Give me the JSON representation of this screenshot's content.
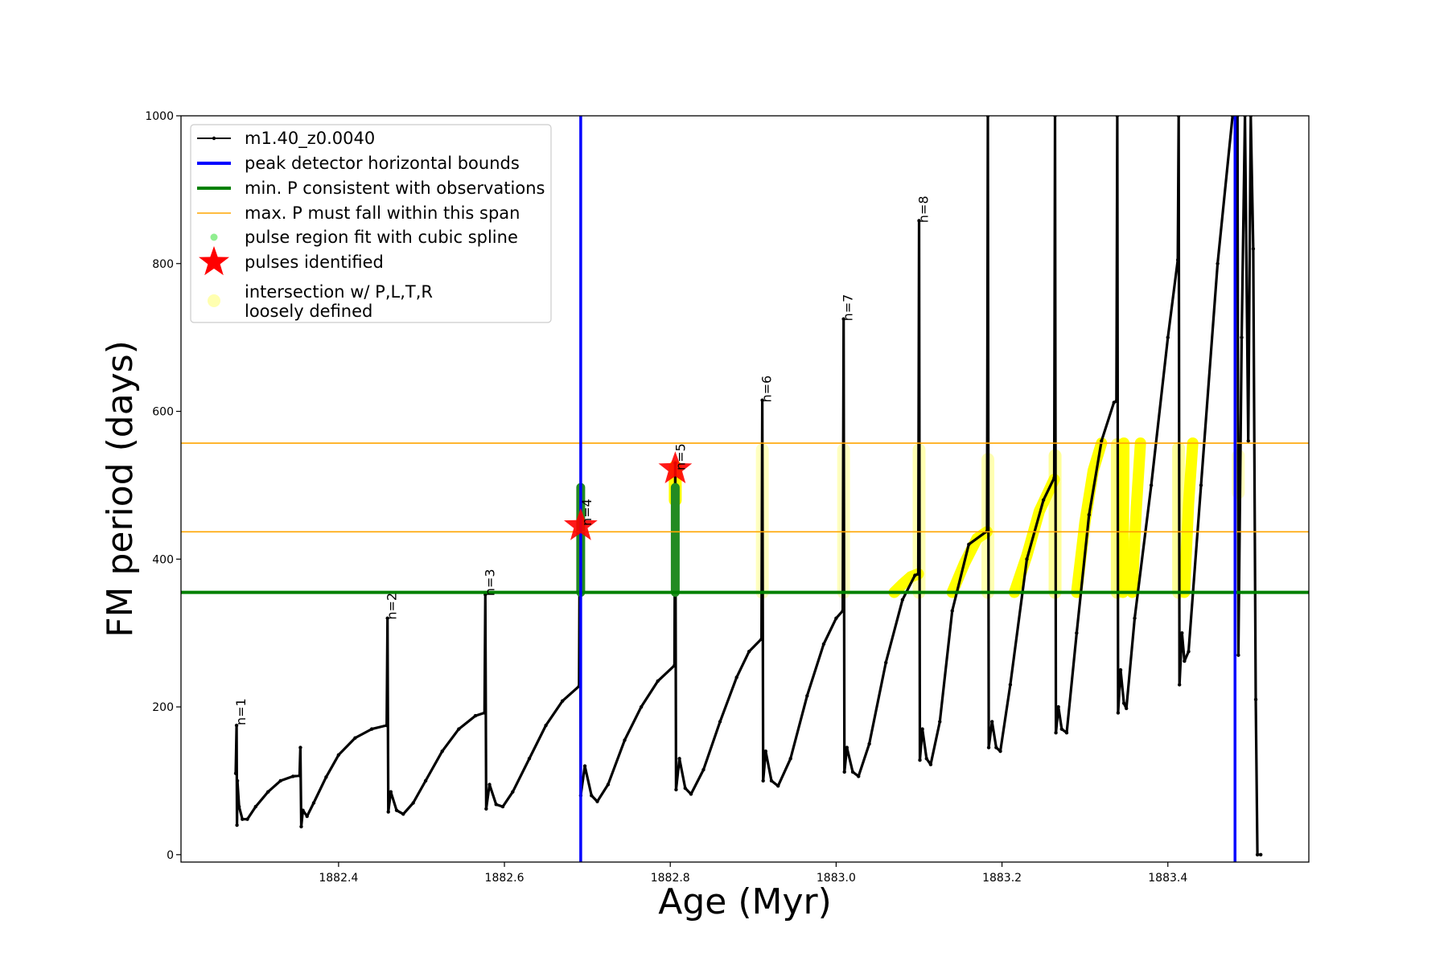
{
  "chart_data": {
    "type": "line",
    "xlabel": "Age (Myr)",
    "ylabel": "FM period (days)",
    "xlim": [
      1882.21,
      1883.57
    ],
    "ylim": [
      -10,
      1000
    ],
    "xticks": [
      "1882.4",
      "1882.6",
      "1882.8",
      "1883.0",
      "1883.2",
      "1883.4"
    ],
    "yticks": [
      "0",
      "200",
      "400",
      "600",
      "800",
      "1000"
    ],
    "grid": false,
    "legend_position": "top-left",
    "legend": [
      {
        "label": "m1.40_z0.0040",
        "kind": "line-dot",
        "color": "#000000"
      },
      {
        "label": "peak detector horizontal bounds",
        "kind": "line",
        "color": "#0000ff"
      },
      {
        "label": "min. P consistent with observations",
        "kind": "line",
        "color": "#008000"
      },
      {
        "label": "max. P must fall within this span",
        "kind": "thin-line",
        "color": "#ffa500"
      },
      {
        "label": "pulse region fit with cubic spline",
        "kind": "dot",
        "color": "#90ee90"
      },
      {
        "label": "pulses identified",
        "kind": "star",
        "color": "#ff0000"
      },
      {
        "label": "intersection w/ P,L,T,R\nloosely defined",
        "kind": "pale-dot",
        "color": "#ffffb0"
      }
    ],
    "vlines": [
      {
        "x": 1882.692,
        "color": "#0000ff"
      },
      {
        "x": 1883.481,
        "color": "#0000ff"
      }
    ],
    "hlines": [
      {
        "y": 355,
        "color": "#008000",
        "width": 4
      },
      {
        "y": 437,
        "color": "#ffa500",
        "width": 1.6
      },
      {
        "y": 557,
        "color": "#ffa500",
        "width": 1.6
      }
    ],
    "series": [
      {
        "name": "m1.40_z0.0040",
        "color": "#000000",
        "points": [
          [
            1882.276,
            110
          ],
          [
            1882.277,
            175
          ],
          [
            1882.2775,
            40
          ],
          [
            1882.278,
            100
          ],
          [
            1882.28,
            65
          ],
          [
            1882.284,
            48
          ],
          [
            1882.29,
            48
          ],
          [
            1882.3,
            65
          ],
          [
            1882.315,
            85
          ],
          [
            1882.33,
            100
          ],
          [
            1882.345,
            106
          ],
          [
            1882.353,
            107
          ],
          [
            1882.354,
            145
          ],
          [
            1882.355,
            38
          ],
          [
            1882.357,
            60
          ],
          [
            1882.362,
            52
          ],
          [
            1882.37,
            70
          ],
          [
            1882.385,
            105
          ],
          [
            1882.4,
            135
          ],
          [
            1882.42,
            158
          ],
          [
            1882.44,
            170
          ],
          [
            1882.458,
            175
          ],
          [
            1882.459,
            320
          ],
          [
            1882.46,
            58
          ],
          [
            1882.463,
            85
          ],
          [
            1882.47,
            60
          ],
          [
            1882.478,
            55
          ],
          [
            1882.49,
            70
          ],
          [
            1882.505,
            100
          ],
          [
            1882.525,
            140
          ],
          [
            1882.545,
            170
          ],
          [
            1882.565,
            188
          ],
          [
            1882.576,
            192
          ],
          [
            1882.577,
            352
          ],
          [
            1882.578,
            62
          ],
          [
            1882.582,
            95
          ],
          [
            1882.59,
            68
          ],
          [
            1882.598,
            65
          ],
          [
            1882.61,
            85
          ],
          [
            1882.63,
            130
          ],
          [
            1882.65,
            175
          ],
          [
            1882.67,
            208
          ],
          [
            1882.69,
            228
          ],
          [
            1882.691,
            480
          ],
          [
            1882.692,
            80
          ],
          [
            1882.697,
            120
          ],
          [
            1882.705,
            80
          ],
          [
            1882.712,
            72
          ],
          [
            1882.725,
            95
          ],
          [
            1882.745,
            155
          ],
          [
            1882.765,
            200
          ],
          [
            1882.785,
            235
          ],
          [
            1882.805,
            256
          ],
          [
            1882.806,
            530
          ],
          [
            1882.807,
            88
          ],
          [
            1882.811,
            130
          ],
          [
            1882.818,
            90
          ],
          [
            1882.825,
            82
          ],
          [
            1882.84,
            115
          ],
          [
            1882.86,
            180
          ],
          [
            1882.88,
            240
          ],
          [
            1882.895,
            275
          ],
          [
            1882.91,
            292
          ],
          [
            1882.911,
            615
          ],
          [
            1882.912,
            100
          ],
          [
            1882.915,
            140
          ],
          [
            1882.922,
            100
          ],
          [
            1882.93,
            93
          ],
          [
            1882.945,
            130
          ],
          [
            1882.965,
            215
          ],
          [
            1882.985,
            285
          ],
          [
            1883.0,
            320
          ],
          [
            1883.008,
            330
          ],
          [
            1883.009,
            725
          ],
          [
            1883.01,
            112
          ],
          [
            1883.013,
            145
          ],
          [
            1883.02,
            112
          ],
          [
            1883.027,
            106
          ],
          [
            1883.04,
            150
          ],
          [
            1883.06,
            260
          ],
          [
            1883.08,
            345
          ],
          [
            1883.095,
            378
          ],
          [
            1883.099,
            380
          ],
          [
            1883.1,
            858
          ],
          [
            1883.101,
            128
          ],
          [
            1883.104,
            170
          ],
          [
            1883.109,
            130
          ],
          [
            1883.114,
            122
          ],
          [
            1883.125,
            180
          ],
          [
            1883.14,
            330
          ],
          [
            1883.16,
            420
          ],
          [
            1883.182,
            438
          ],
          [
            1883.183,
            1000
          ],
          [
            1883.184,
            145
          ],
          [
            1883.188,
            180
          ],
          [
            1883.193,
            145
          ],
          [
            1883.198,
            140
          ],
          [
            1883.21,
            230
          ],
          [
            1883.23,
            400
          ],
          [
            1883.25,
            480
          ],
          [
            1883.263,
            510
          ],
          [
            1883.264,
            1000
          ],
          [
            1883.265,
            165
          ],
          [
            1883.268,
            200
          ],
          [
            1883.272,
            170
          ],
          [
            1883.278,
            165
          ],
          [
            1883.29,
            300
          ],
          [
            1883.305,
            460
          ],
          [
            1883.32,
            560
          ],
          [
            1883.335,
            612
          ],
          [
            1883.338,
            614
          ],
          [
            1883.339,
            1000
          ],
          [
            1883.34,
            192
          ],
          [
            1883.343,
            250
          ],
          [
            1883.347,
            205
          ],
          [
            1883.35,
            198
          ],
          [
            1883.36,
            320
          ],
          [
            1883.38,
            500
          ],
          [
            1883.4,
            700
          ],
          [
            1883.412,
            805
          ],
          [
            1883.413,
            1000
          ],
          [
            1883.414,
            230
          ],
          [
            1883.417,
            300
          ],
          [
            1883.42,
            262
          ],
          [
            1883.425,
            275
          ],
          [
            1883.44,
            500
          ],
          [
            1883.46,
            800
          ],
          [
            1883.478,
            1000
          ],
          [
            1883.484,
            1000
          ],
          [
            1883.485,
            270
          ],
          [
            1883.489,
            700
          ],
          [
            1883.493,
            1000
          ],
          [
            1883.497,
            560
          ],
          [
            1883.5,
            1000
          ],
          [
            1883.503,
            820
          ],
          [
            1883.506,
            210
          ],
          [
            1883.508,
            0
          ],
          [
            1883.512,
            0
          ]
        ]
      }
    ],
    "pulse_spline_regions": [
      {
        "x": 1882.692,
        "ymin": 355,
        "ymax": 497,
        "color": "#228b22"
      },
      {
        "x": 1882.806,
        "ymin": 355,
        "ymax": 497,
        "color": "#228b22"
      }
    ],
    "yellow_columns": [
      {
        "x": 1882.806,
        "ymin": 480,
        "ymax": 525
      },
      {
        "x": 1882.911,
        "ymin": 355,
        "ymax": 548,
        "alpha": 0.25
      },
      {
        "x": 1883.009,
        "ymin": 355,
        "ymax": 548,
        "alpha": 0.25
      },
      {
        "x": 1883.1,
        "ymin": 355,
        "ymax": 548,
        "alpha": 0.3
      },
      {
        "x": 1883.183,
        "ymin": 355,
        "ymax": 535,
        "alpha": 0.3
      },
      {
        "x": 1883.264,
        "ymin": 355,
        "ymax": 540,
        "alpha": 0.4
      },
      {
        "x": 1883.339,
        "ymin": 355,
        "ymax": 555,
        "alpha": 0.5
      },
      {
        "x": 1883.413,
        "ymin": 355,
        "ymax": 550,
        "alpha": 0.4
      },
      {
        "x": 1883.485,
        "ymin": 490,
        "ymax": 540,
        "alpha": 0.25
      }
    ],
    "yellow_segments": [
      [
        [
          1883.07,
          355
        ],
        [
          1883.08,
          366
        ],
        [
          1883.09,
          376
        ],
        [
          1883.099,
          380
        ]
      ],
      [
        [
          1883.14,
          355
        ],
        [
          1883.155,
          395
        ],
        [
          1883.17,
          428
        ],
        [
          1883.182,
          437
        ]
      ],
      [
        [
          1883.215,
          355
        ],
        [
          1883.23,
          405
        ],
        [
          1883.245,
          465
        ],
        [
          1883.263,
          508
        ]
      ],
      [
        [
          1883.29,
          355
        ],
        [
          1883.3,
          450
        ],
        [
          1883.31,
          520
        ],
        [
          1883.32,
          557
        ]
      ],
      [
        [
          1883.346,
          355
        ],
        [
          1883.347,
          557
        ]
      ],
      [
        [
          1883.357,
          355
        ],
        [
          1883.362,
          470
        ],
        [
          1883.367,
          557
        ]
      ],
      [
        [
          1883.42,
          355
        ],
        [
          1883.425,
          475
        ],
        [
          1883.43,
          557
        ]
      ]
    ],
    "pulses_identified": [
      {
        "x": 1882.692,
        "y": 445
      },
      {
        "x": 1882.806,
        "y": 522
      }
    ],
    "annotations": [
      {
        "text": "n=1",
        "x": 1882.277,
        "y": 175
      },
      {
        "text": "n=2",
        "x": 1882.459,
        "y": 318
      },
      {
        "text": "n=3",
        "x": 1882.577,
        "y": 350
      },
      {
        "text": "n=4",
        "x": 1882.694,
        "y": 445
      },
      {
        "text": "n=5",
        "x": 1882.807,
        "y": 520
      },
      {
        "text": "n=6",
        "x": 1882.911,
        "y": 612
      },
      {
        "text": "n=7",
        "x": 1883.009,
        "y": 722
      },
      {
        "text": "n=8",
        "x": 1883.1,
        "y": 855
      }
    ]
  }
}
